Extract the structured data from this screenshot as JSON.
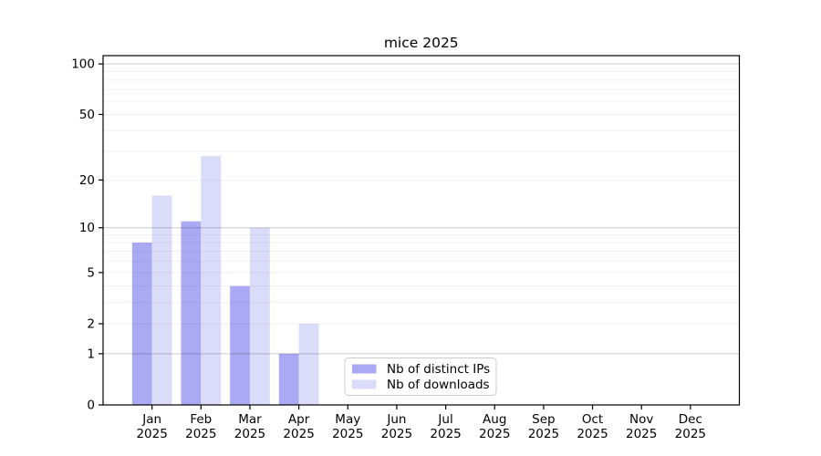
{
  "chart_data": {
    "type": "bar",
    "title": "mice 2025",
    "categories": [
      "Jan 2025",
      "Feb 2025",
      "Mar 2025",
      "Apr 2025",
      "May 2025",
      "Jun 2025",
      "Jul 2025",
      "Aug 2025",
      "Sep 2025",
      "Oct 2025",
      "Nov 2025",
      "Dec 2025"
    ],
    "series": [
      {
        "name": "Nb of distinct IPs",
        "color": "#a9a9f4",
        "values": [
          8,
          11,
          4,
          1,
          0,
          0,
          0,
          0,
          0,
          0,
          0,
          0
        ]
      },
      {
        "name": "Nb of downloads",
        "color": "#dbdbfa",
        "values": [
          16,
          28,
          10,
          2,
          0,
          0,
          0,
          0,
          0,
          0,
          0,
          0
        ]
      }
    ],
    "xlabel": "",
    "ylabel": "",
    "y_scale": "log1p",
    "ylim": [
      0,
      112
    ],
    "y_ticks": [
      100,
      50,
      20,
      10,
      5,
      2,
      1,
      0
    ],
    "y_major_grid": [
      1,
      10,
      100
    ],
    "y_minor_grid": [
      2,
      3,
      4,
      5,
      6,
      7,
      8,
      9,
      20,
      30,
      40,
      50,
      60,
      70,
      80,
      90
    ],
    "grid": "on",
    "legend_position": "bottom-center",
    "colors": {
      "bar_dark": "#a9a9f4",
      "bar_light": "#dbdbfa",
      "axis": "#000000",
      "grid_major": "#cccccc",
      "grid_minor": "#f2f2f2",
      "legend_border": "#cccccc",
      "legend_bg": "#ffffff"
    }
  }
}
